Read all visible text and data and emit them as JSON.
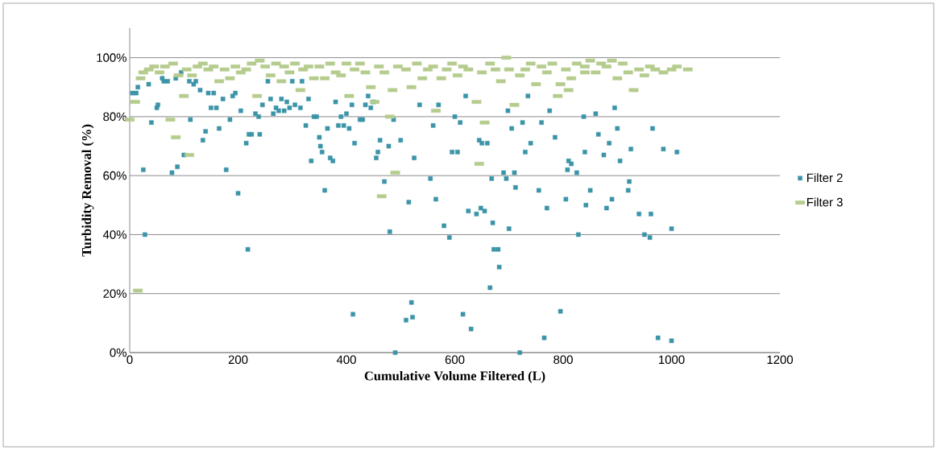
{
  "chart_data": {
    "type": "scatter",
    "xlabel": "Cumulative Volume Filtered (L)",
    "ylabel": "Turbidity Removal (%)",
    "xlim": [
      0,
      1200
    ],
    "xticks": [
      0,
      200,
      400,
      600,
      800,
      1000,
      1200
    ],
    "ylim": [
      0,
      110
    ],
    "yticks": [
      {
        "value": 0,
        "label": "0%"
      },
      {
        "value": 20,
        "label": "20%"
      },
      {
        "value": 40,
        "label": "40%"
      },
      {
        "value": 60,
        "label": "60%"
      },
      {
        "value": 80,
        "label": "80%"
      },
      {
        "value": 100,
        "label": "100%"
      }
    ],
    "grid": "y",
    "legend": "right",
    "series": [
      {
        "name": "Filter 2",
        "color": "#3c94a8",
        "marker": "square",
        "x": [
          5,
          12,
          15,
          25,
          28,
          35,
          40,
          50,
          52,
          60,
          63,
          70,
          78,
          85,
          88,
          95,
          100,
          110,
          112,
          118,
          122,
          130,
          135,
          140,
          145,
          150,
          155,
          160,
          165,
          172,
          178,
          185,
          190,
          195,
          200,
          205,
          215,
          218,
          220,
          225,
          232,
          238,
          240,
          245,
          255,
          260,
          265,
          270,
          275,
          280,
          285,
          290,
          295,
          300,
          305,
          315,
          318,
          325,
          330,
          335,
          340,
          345,
          350,
          352,
          355,
          360,
          365,
          370,
          375,
          380,
          385,
          390,
          395,
          400,
          405,
          410,
          412,
          415,
          425,
          430,
          435,
          440,
          445,
          450,
          455,
          458,
          462,
          470,
          478,
          480,
          487,
          490,
          500,
          510,
          515,
          520,
          522,
          525,
          535,
          555,
          560,
          565,
          570,
          580,
          590,
          595,
          600,
          605,
          610,
          615,
          620,
          625,
          630,
          640,
          645,
          648,
          650,
          655,
          660,
          665,
          668,
          670,
          672,
          680,
          682,
          690,
          695,
          698,
          700,
          705,
          710,
          712,
          720,
          725,
          730,
          735,
          740,
          755,
          760,
          765,
          770,
          775,
          785,
          795,
          805,
          808,
          810,
          815,
          825,
          828,
          838,
          840,
          842,
          850,
          860,
          865,
          875,
          880,
          885,
          890,
          895,
          900,
          905,
          920,
          922,
          925,
          940,
          950,
          960,
          962,
          965,
          975,
          985,
          1000,
          1000,
          1010
        ],
        "values": [
          88,
          88,
          90,
          62,
          40,
          91,
          78,
          83,
          84,
          93,
          92,
          92,
          61,
          93,
          63,
          95,
          67,
          92,
          79,
          91,
          92,
          89,
          72,
          75,
          88,
          83,
          88,
          83,
          76,
          86,
          62,
          79,
          87,
          88,
          54,
          82,
          71,
          35,
          74,
          74,
          81,
          80,
          74,
          84,
          92,
          86,
          81,
          83,
          82,
          86,
          82,
          85,
          83,
          92,
          84,
          83,
          92,
          77,
          86,
          65,
          80,
          80,
          73,
          70,
          68,
          55,
          76,
          66,
          65,
          85,
          77,
          80,
          77,
          81,
          76,
          84,
          13,
          71,
          79,
          79,
          84,
          87,
          83,
          85,
          66,
          68,
          72,
          58,
          70,
          41,
          79,
          0,
          72,
          11,
          51,
          17,
          12,
          66,
          84,
          59,
          77,
          52,
          84,
          43,
          39,
          68,
          80,
          68,
          78,
          13,
          87,
          48,
          8,
          47,
          72,
          49,
          71,
          48,
          71,
          22,
          59,
          44,
          35,
          35,
          29,
          61,
          59,
          82,
          42,
          76,
          61,
          56,
          0,
          78,
          68,
          87,
          71,
          55,
          78,
          5,
          49,
          82,
          73,
          14,
          52,
          62,
          65,
          64,
          61,
          40,
          80,
          68,
          50,
          55,
          81,
          74,
          67,
          49,
          71,
          52,
          83,
          76,
          65,
          55,
          58,
          69,
          47,
          40,
          39,
          47,
          76,
          5,
          69,
          42,
          4,
          68
        ]
      },
      {
        "name": "Filter 3",
        "color": "#b5cc8e",
        "marker": "square",
        "x": [
          0,
          10,
          15,
          20,
          25,
          35,
          45,
          55,
          65,
          75,
          80,
          85,
          90,
          100,
          105,
          110,
          115,
          125,
          135,
          145,
          155,
          165,
          175,
          185,
          195,
          205,
          215,
          225,
          235,
          240,
          250,
          260,
          270,
          280,
          285,
          295,
          305,
          315,
          320,
          330,
          340,
          350,
          360,
          370,
          380,
          390,
          400,
          405,
          415,
          425,
          435,
          445,
          452,
          460,
          465,
          470,
          480,
          485,
          490,
          495,
          510,
          520,
          530,
          540,
          550,
          560,
          565,
          575,
          585,
          595,
          605,
          615,
          625,
          640,
          645,
          650,
          655,
          665,
          675,
          685,
          695,
          700,
          710,
          720,
          730,
          740,
          750,
          760,
          770,
          780,
          790,
          795,
          805,
          810,
          815,
          825,
          840,
          840,
          850,
          860,
          870,
          880,
          890,
          900,
          910,
          920,
          930,
          940,
          950,
          960,
          970,
          985,
          1000,
          1010,
          1030
        ],
        "values": [
          79,
          85,
          21,
          93,
          95,
          96,
          97,
          95,
          97,
          79,
          98,
          73,
          94,
          87,
          96,
          67,
          94,
          97,
          98,
          96,
          97,
          92,
          96,
          93,
          97,
          95,
          96,
          98,
          87,
          99,
          97,
          94,
          98,
          92,
          97,
          95,
          98,
          89,
          96,
          97,
          93,
          97,
          93,
          98,
          95,
          94,
          98,
          87,
          96,
          98,
          95,
          90,
          85,
          97,
          53,
          95,
          80,
          89,
          61,
          97,
          96,
          90,
          98,
          93,
          96,
          97,
          82,
          93,
          96,
          98,
          94,
          97,
          96,
          85,
          64,
          95,
          78,
          98,
          96,
          92,
          100,
          96,
          84,
          94,
          96,
          98,
          91,
          97,
          95,
          98,
          87,
          91,
          96,
          89,
          93,
          98,
          97,
          95,
          99,
          95,
          98,
          97,
          99,
          93,
          98,
          95,
          89,
          96,
          94,
          97,
          96,
          95,
          96,
          97,
          96
        ]
      }
    ]
  }
}
